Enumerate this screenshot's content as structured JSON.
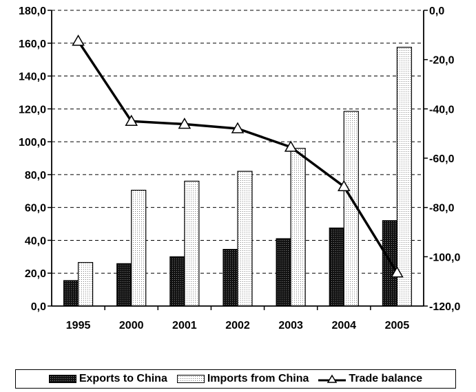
{
  "chart_data": {
    "type": "bar",
    "categories": [
      "1995",
      "2000",
      "2001",
      "2002",
      "2003",
      "2004",
      "2005"
    ],
    "series": [
      {
        "name": "Exports to China",
        "type": "bar",
        "axis": "left",
        "color": "#111111",
        "values": [
          15.5,
          25.8,
          30.0,
          34.5,
          41.0,
          47.5,
          52.0
        ]
      },
      {
        "name": "Imports from China",
        "type": "bar",
        "axis": "left",
        "color": "#ffffff",
        "values": [
          26.5,
          70.5,
          76.0,
          82.0,
          96.0,
          118.5,
          157.5
        ]
      },
      {
        "name": "Trade balance",
        "type": "line",
        "axis": "right",
        "marker": "triangle",
        "color": "#000000",
        "values": [
          -12.5,
          -45.0,
          -46.2,
          -48.0,
          -55.5,
          -71.5,
          -106.5
        ]
      }
    ],
    "left_axis": {
      "ylim": [
        0,
        180
      ],
      "ticks": [
        "0,0",
        "20,0",
        "40,0",
        "60,0",
        "80,0",
        "100,0",
        "120,0",
        "140,0",
        "160,0",
        "180,0"
      ]
    },
    "right_axis": {
      "ylim": [
        -120,
        0
      ],
      "ticks": [
        "-120,0",
        "-100,0",
        "-80,0",
        "-60,0",
        "-40,0",
        "-20,0",
        "0,0"
      ]
    },
    "grid": "horizontal dashed",
    "legend_position": "bottom",
    "title": "",
    "xlabel": "",
    "ylabel": ""
  }
}
